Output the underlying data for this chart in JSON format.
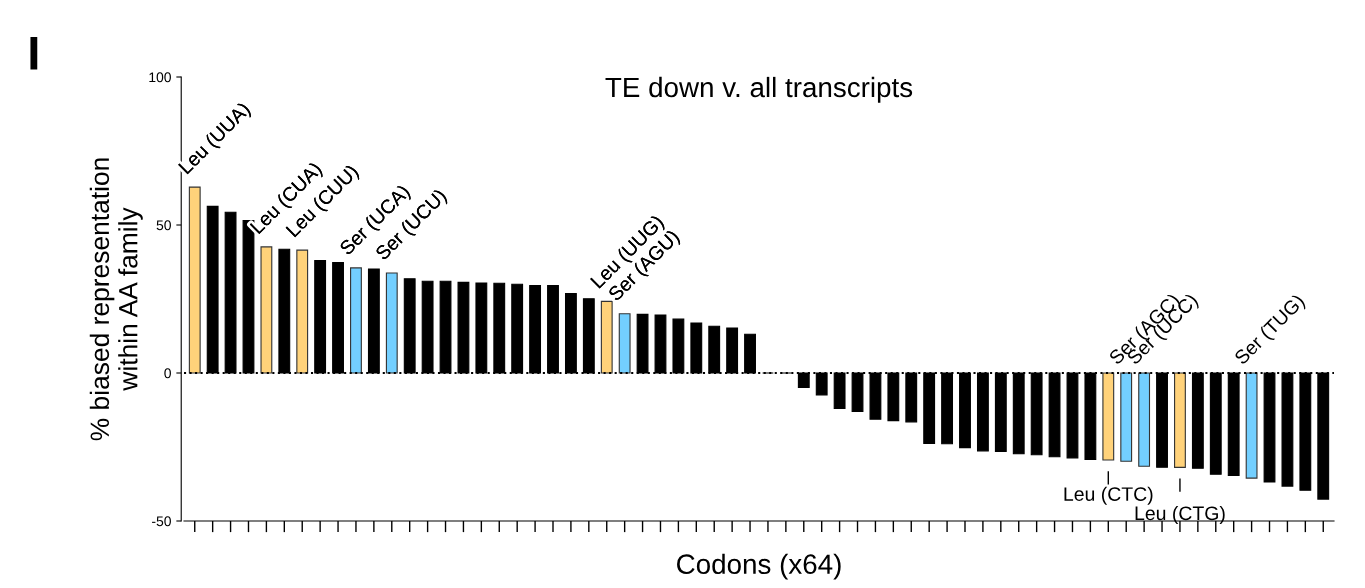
{
  "chart_data": {
    "type": "bar",
    "title": "TE down v. all transcripts",
    "xlabel": "Codons (x64)",
    "ylabel": "% biased representation\nwithin AA family",
    "annotations": [
      "I"
    ],
    "categories": [
      null,
      null,
      null,
      null,
      null,
      null,
      null,
      null,
      null,
      null,
      null,
      null,
      null,
      null,
      null,
      null,
      null,
      null,
      null,
      null,
      null,
      null,
      null,
      null,
      null,
      null,
      null,
      null,
      null,
      null,
      null,
      null,
      null,
      null,
      null,
      null,
      null,
      null,
      null,
      null,
      null,
      null,
      null,
      null,
      null,
      null,
      null,
      null,
      null,
      null,
      null,
      null,
      null,
      null,
      null,
      null,
      null,
      null,
      null,
      null,
      null,
      null,
      null,
      null
    ],
    "values": [
      62.8,
      56.3,
      54.3,
      51.5,
      42.6,
      41.8,
      41.5,
      38,
      37.3,
      35.5,
      35.1,
      33.8,
      31.8,
      31,
      31,
      30.6,
      30.4,
      30.3,
      30,
      29.5,
      29.5,
      26.8,
      25.1,
      24.2,
      20,
      19.8,
      19.6,
      18.2,
      16.9,
      15.8,
      15.2,
      13.1,
      0,
      0,
      -4.9,
      -7.4,
      -12,
      -13,
      -15.6,
      -16.1,
      -16.5,
      -23.8,
      -23.9,
      -25.2,
      -26.3,
      -26.5,
      -27.3,
      -27.6,
      -28.3,
      -28.7,
      -29.2,
      -29.4,
      -29.8,
      -31.5,
      -31.8,
      -31.9,
      -32.2,
      -34.2,
      -34.6,
      -35.5,
      -36.8,
      -38.2,
      -39.6,
      -42.6
    ],
    "colors": [
      "#ffd27a",
      "#000000",
      "#000000",
      "#000000",
      "#ffd27a",
      "#000000",
      "#ffd27a",
      "#000000",
      "#000000",
      "#73cfff",
      "#000000",
      "#73cfff",
      "#000000",
      "#000000",
      "#000000",
      "#000000",
      "#000000",
      "#000000",
      "#000000",
      "#000000",
      "#000000",
      "#000000",
      "#000000",
      "#ffd27a",
      "#73cfff",
      "#000000",
      "#000000",
      "#000000",
      "#000000",
      "#000000",
      "#000000",
      "#000000",
      "#000000",
      "#000000",
      "#000000",
      "#000000",
      "#000000",
      "#000000",
      "#000000",
      "#000000",
      "#000000",
      "#000000",
      "#000000",
      "#000000",
      "#000000",
      "#000000",
      "#000000",
      "#000000",
      "#000000",
      "#000000",
      "#000000",
      "#ffd27a",
      "#73cfff",
      "#73cfff",
      "#000000",
      "#ffd27a",
      "#000000",
      "#000000",
      "#000000",
      "#73cfff",
      "#000000",
      "#000000",
      "#000000",
      "#000000"
    ],
    "value_labels": [
      "Leu (UUA)",
      null,
      null,
      null,
      "Leu (CUA)",
      null,
      "Leu (CUU)",
      null,
      null,
      "Ser (UCA)",
      null,
      "Ser (UCU)",
      null,
      null,
      null,
      null,
      null,
      null,
      null,
      null,
      null,
      null,
      null,
      "Leu (UUG)",
      "Ser (AGU)",
      null,
      null,
      null,
      null,
      null,
      null,
      null,
      null,
      null,
      null,
      null,
      null,
      null,
      null,
      null,
      null,
      null,
      null,
      null,
      null,
      null,
      null,
      null,
      null,
      null,
      null,
      "Leu (CTC)",
      "Ser (AGC)",
      "Ser (UCC)",
      null,
      "Leu (CTG)",
      null,
      null,
      null,
      "Ser (TUG)",
      null,
      null,
      null,
      null
    ],
    "ylim": [
      -50,
      100
    ],
    "yticks": [
      {
        "value": -50,
        "label": "-50"
      },
      0,
      50,
      100
    ],
    "ref_lines": [
      {
        "axis": "y",
        "value": 0,
        "label": null,
        "color": "#000000",
        "line_style": "dotted"
      }
    ],
    "grid": false
  }
}
